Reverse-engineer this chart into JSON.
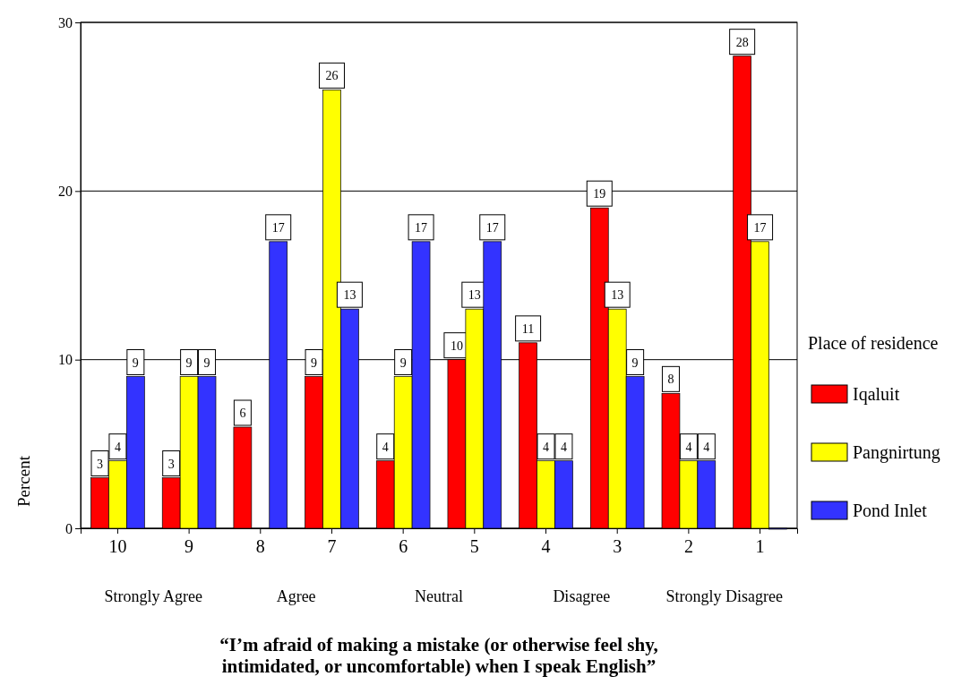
{
  "chart_data": {
    "type": "bar",
    "categories": [
      "10",
      "9",
      "8",
      "7",
      "6",
      "5",
      "4",
      "3",
      "2",
      "1"
    ],
    "series": [
      {
        "name": "Iqaluit",
        "color": "#ff0000",
        "values": [
          3,
          3,
          6,
          9,
          4,
          10,
          11,
          19,
          8,
          28
        ],
        "value_labels": [
          "3",
          "3",
          "6",
          "9",
          "4",
          "10",
          "11",
          "19",
          "8",
          "28"
        ]
      },
      {
        "name": "Pangnirtung",
        "color": "#ffff00",
        "values": [
          4,
          9,
          null,
          26,
          9,
          13,
          4,
          13,
          4,
          17
        ],
        "value_labels": [
          "4",
          "9",
          null,
          "26",
          "9",
          "13",
          "4",
          "13",
          "4",
          "17"
        ]
      },
      {
        "name": "Pond Inlet",
        "color": "#3333ff",
        "values": [
          9,
          9,
          17,
          13,
          17,
          17,
          4,
          9,
          4,
          0
        ],
        "value_labels": [
          "9",
          "9",
          "17",
          "13",
          "17",
          "17",
          "4",
          "9",
          "4",
          null
        ]
      }
    ],
    "ylim": [
      0,
      30
    ],
    "yticks": [
      0,
      10,
      20,
      30
    ],
    "grid": "y",
    "legend": "right",
    "legend_title": "Place of residence",
    "ylabel": "Percent",
    "xlabel": "“I’m afraid of making a mistake (or otherwise feel shy, intimidated, or uncomfortable) when I speak English”",
    "annotations": [
      "Strongly Agree",
      "Agree",
      "Neutral",
      "Disagree",
      "Strongly Disagree"
    ]
  }
}
